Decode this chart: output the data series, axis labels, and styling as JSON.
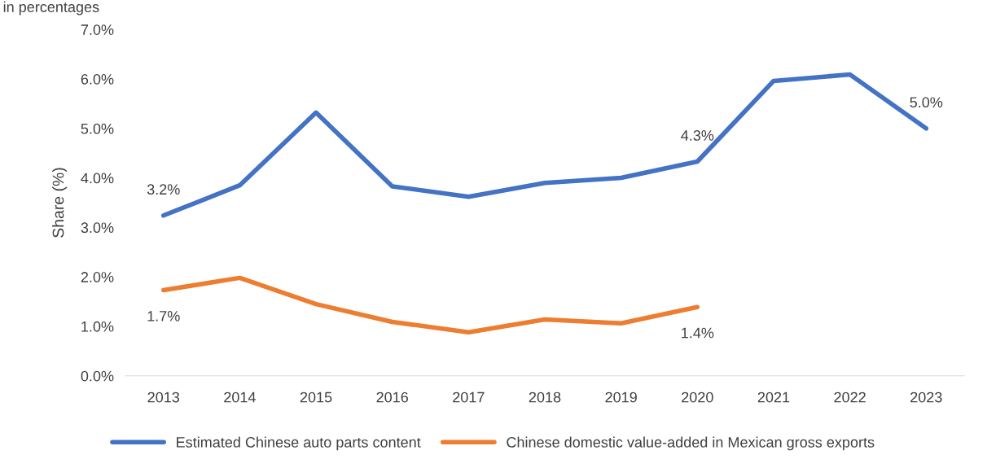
{
  "chart_data": {
    "type": "line",
    "subtitle": "in percentages",
    "ylabel": "Share (%)",
    "categories": [
      "2013",
      "2014",
      "2015",
      "2016",
      "2017",
      "2018",
      "2019",
      "2020",
      "2021",
      "2022",
      "2023"
    ],
    "series": [
      {
        "name": "Estimated Chinese auto parts content",
        "color": "#4472c4",
        "values": [
          3.24,
          3.85,
          5.32,
          3.83,
          3.62,
          3.9,
          4.0,
          4.33,
          5.96,
          6.09,
          5.0
        ],
        "value_labels": [
          "3.2%",
          null,
          null,
          null,
          null,
          null,
          null,
          "4.3%",
          null,
          null,
          "5.0%"
        ]
      },
      {
        "name": "Chinese domestic value-added in Mexican gross exports",
        "color": "#ed7d31",
        "values": [
          1.73,
          1.98,
          1.45,
          1.09,
          0.88,
          1.14,
          1.06,
          1.39,
          null,
          null,
          null
        ],
        "value_labels": [
          "1.7%",
          null,
          null,
          null,
          null,
          null,
          null,
          "1.4%",
          null,
          null,
          null
        ]
      }
    ],
    "ylim": [
      0,
      7
    ],
    "yticks": [
      {
        "value": 0,
        "label": "0.0%"
      },
      {
        "value": 1,
        "label": "1.0%"
      },
      {
        "value": 2,
        "label": "2.0%"
      },
      {
        "value": 3,
        "label": "3.0%"
      },
      {
        "value": 4,
        "label": "4.0%"
      },
      {
        "value": 5,
        "label": "5.0%"
      },
      {
        "value": 6,
        "label": "6.0%"
      },
      {
        "value": 7,
        "label": "7.0%"
      }
    ],
    "grid": false,
    "legend": "bottom",
    "marker": "none",
    "line_style": "solid"
  }
}
